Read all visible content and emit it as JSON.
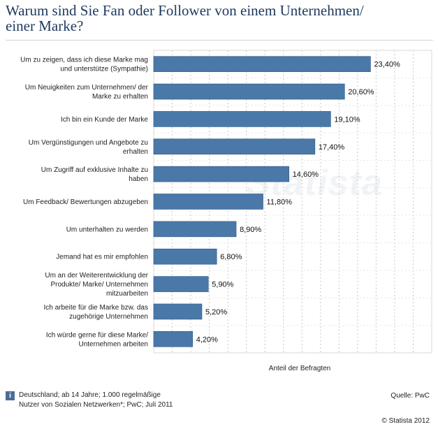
{
  "page": {
    "title_line1": "Warum sind Sie Fan oder Follower von einem Unternehmen/",
    "title_line2": "einer Marke?",
    "watermark": "Statista",
    "footer_note_line1": "Deutschland; ab 14 Jahre; 1.000 regelmäßige",
    "footer_note_line2": "Nutzer von Sozialen Netzwerken*; PwC; Juli 2011",
    "source": "Quelle: PwC",
    "copyright": "© Statista 2012",
    "info_icon": "info-icon"
  },
  "chart_data": {
    "type": "bar",
    "orientation": "horizontal",
    "categories": [
      [
        "Um zu zeigen, dass ich diese Marke mag",
        "und unterstütze (Sympathie)"
      ],
      [
        "Um Neuigkeiten zum Unternehmen/ der",
        "Marke zu erhalten"
      ],
      [
        "Ich bin ein Kunde der Marke"
      ],
      [
        "Um Vergünstigungen und Angebote zu",
        "erhalten"
      ],
      [
        "Um Zugriff auf exklusive Inhalte zu",
        "haben"
      ],
      [
        "Um Feedback/ Bewertungen abzugeben"
      ],
      [
        "Um unterhalten zu werden"
      ],
      [
        "Jemand hat es mir empfohlen"
      ],
      [
        "Um an der Weiterentwicklung der",
        "Produkte/ Marke/ Unternehmen",
        "mitzuarbeiten"
      ],
      [
        "Ich arbeite für die Marke bzw. das",
        "zugehörige Unternehmen"
      ],
      [
        "Ich würde gerne für diese Marke/",
        "Unternehmen arbeiten"
      ]
    ],
    "values": [
      23.4,
      20.6,
      19.1,
      17.4,
      14.6,
      11.8,
      8.9,
      6.8,
      5.9,
      5.2,
      4.2
    ],
    "value_labels": [
      "23,40%",
      "20,60%",
      "19,10%",
      "17,40%",
      "14,60%",
      "11,80%",
      "8,90%",
      "6,80%",
      "5,90%",
      "5,20%",
      "4,20%"
    ],
    "xlabel": "Anteil der Befragten",
    "xlim": [
      0,
      30
    ],
    "grid": true,
    "bar_color": "#4a78a8"
  }
}
